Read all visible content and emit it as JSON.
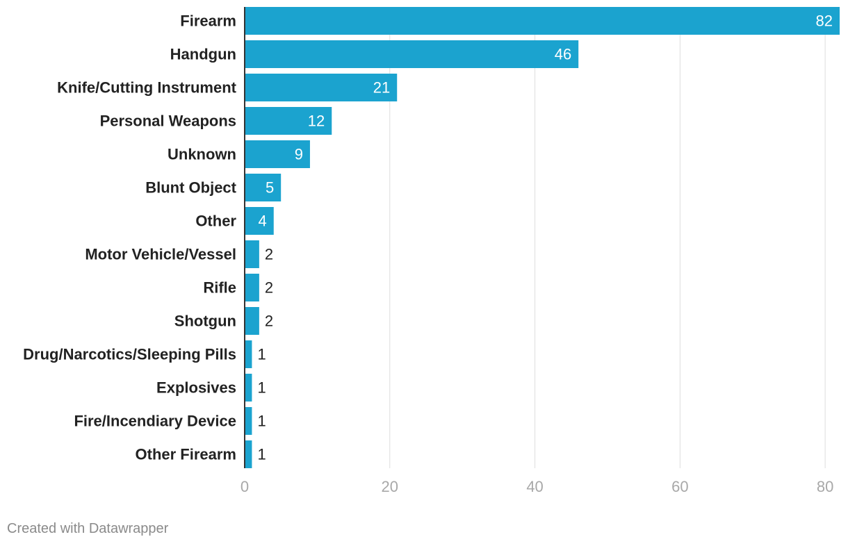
{
  "chart_data": {
    "type": "bar",
    "orientation": "horizontal",
    "categories": [
      "Firearm",
      "Handgun",
      "Knife/Cutting Instrument",
      "Personal Weapons",
      "Unknown",
      "Blunt Object",
      "Other",
      "Motor Vehicle/Vessel",
      "Rifle",
      "Shotgun",
      "Drug/Narcotics/Sleeping Pills",
      "Explosives",
      "Fire/Incendiary Device",
      "Other Firearm"
    ],
    "values": [
      82,
      46,
      21,
      12,
      9,
      5,
      4,
      2,
      2,
      2,
      1,
      1,
      1,
      1
    ],
    "xlim": [
      0,
      82
    ],
    "xticks": [
      0,
      20,
      40,
      60,
      80
    ],
    "grid": true,
    "legend": "none",
    "title": "",
    "xlabel": "",
    "ylabel": ""
  },
  "colors": {
    "bar": "#1ba3cf",
    "value_inside": "#ffffff",
    "value_outside": "#222222",
    "grid": "#dddddd",
    "axis_line": "#333333"
  },
  "footer": {
    "credit": "Created with Datawrapper"
  }
}
